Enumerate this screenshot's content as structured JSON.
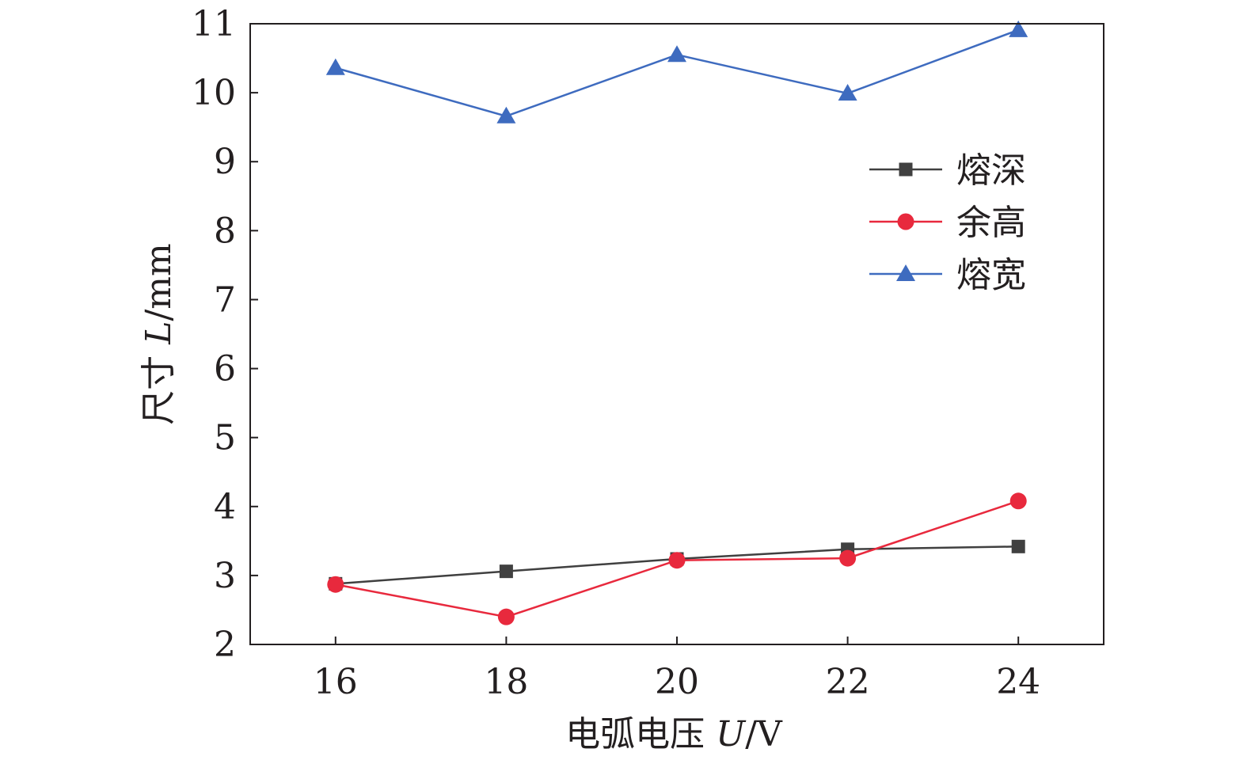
{
  "chart_data": {
    "type": "line",
    "title": "",
    "xlabel": "电弧电压 U/V",
    "xlabel_parts": {
      "prefix": "电弧电压 ",
      "var": "U",
      "suffix": "/V"
    },
    "ylabel": "尺寸 L/mm",
    "ylabel_parts": {
      "prefix": "尺寸 ",
      "var": "L",
      "suffix": "/mm"
    },
    "x": [
      16,
      18,
      20,
      22,
      24
    ],
    "xlim": [
      15,
      25
    ],
    "ylim": [
      2,
      11
    ],
    "xticks": [
      16,
      18,
      20,
      22,
      24
    ],
    "yticks": [
      2,
      3,
      4,
      5,
      6,
      7,
      8,
      9,
      10,
      11
    ],
    "grid": false,
    "legend_position": "right",
    "series": [
      {
        "name": "熔深",
        "values": [
          2.88,
          3.06,
          3.24,
          3.38,
          3.42
        ],
        "color": "#404040",
        "marker": "square"
      },
      {
        "name": "余高",
        "values": [
          2.87,
          2.4,
          3.22,
          3.25,
          4.08
        ],
        "color": "#e8293d",
        "marker": "circle"
      },
      {
        "name": "熔宽",
        "values": [
          10.36,
          9.66,
          10.55,
          9.99,
          10.91
        ],
        "color": "#3e6bbf",
        "marker": "triangle"
      }
    ]
  }
}
